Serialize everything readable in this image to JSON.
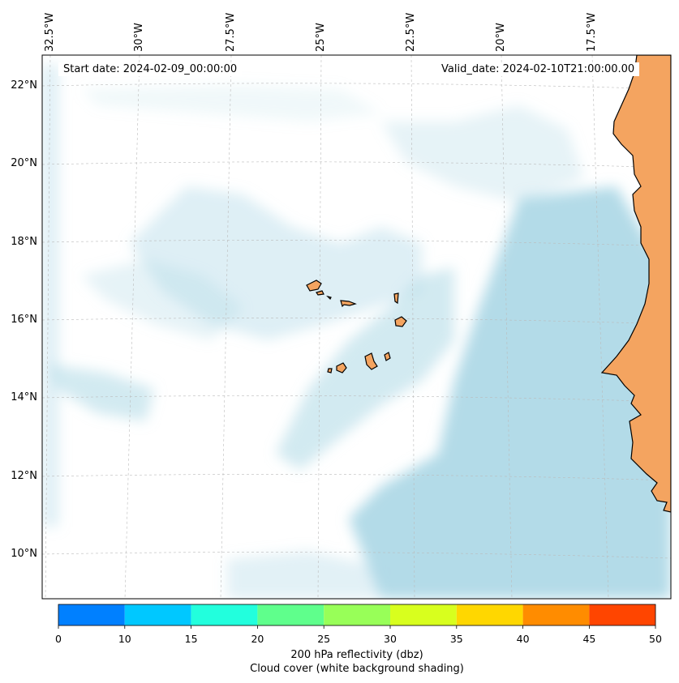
{
  "map": {
    "start_date_label": "Start date: 2024-02-09_00:00:00",
    "valid_date_label": "Valid_date: 2024-02-10T21:00:00.00",
    "longitude_labels": [
      "32.5°W",
      "30°W",
      "27.5°W",
      "25°W",
      "22.5°W",
      "20°W",
      "17.5°W"
    ],
    "latitude_labels": [
      "22°N",
      "20°N",
      "18°N",
      "16°N",
      "14°N",
      "12°N",
      "10°N"
    ],
    "colors": {
      "land": "#f4a460",
      "cloud": "#add8e6",
      "coastline": "#000000",
      "gridline": "#bbbbbb"
    }
  },
  "colorbar": {
    "ticks": [
      "0",
      "10",
      "15",
      "20",
      "25",
      "30",
      "35",
      "40",
      "45",
      "50"
    ],
    "colors": [
      "#0080ff",
      "#00c8ff",
      "#22ffdd",
      "#5fff8c",
      "#98ff58",
      "#d8ff1e",
      "#ffd700",
      "#ff8c00",
      "#ff4500"
    ],
    "label_line1": "200 hPa reflectivity (dbz)",
    "label_line2": "Cloud cover (white background shading)"
  }
}
